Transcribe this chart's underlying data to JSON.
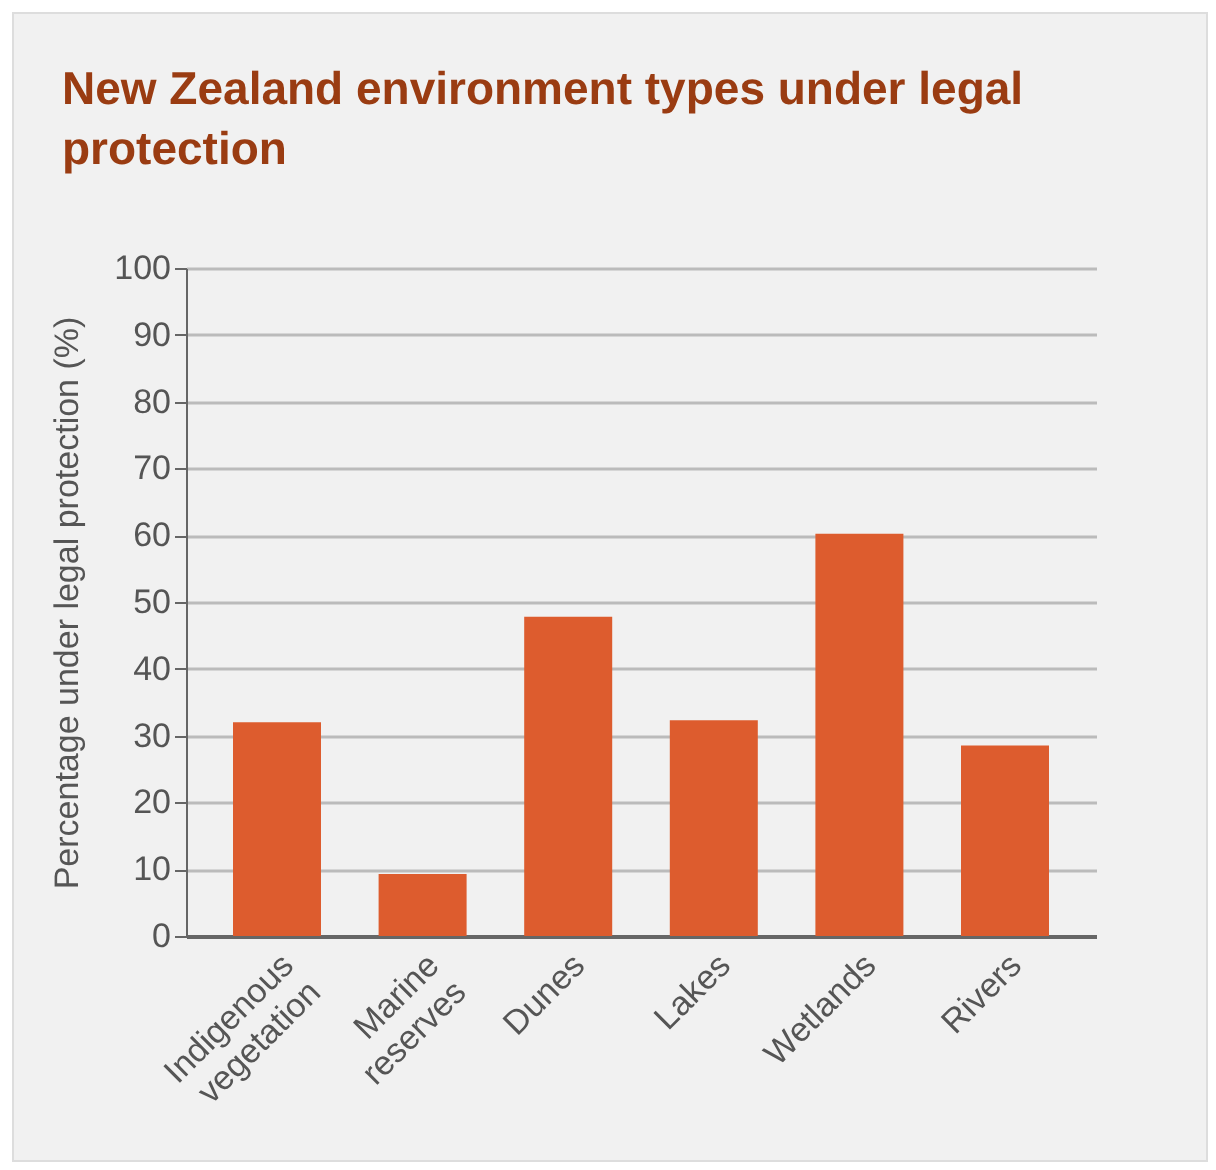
{
  "chart_data": {
    "type": "bar",
    "title": "New Zealand environment types under legal protection",
    "ylabel": "Percentage under legal protection (%)",
    "categories": [
      "Indigenous vegetation",
      "Marine reserves",
      "Dunes",
      "Lakes",
      "Wetlands",
      "Rivers"
    ],
    "values": [
      32,
      9.3,
      47.8,
      32.3,
      60.2,
      28.5
    ],
    "color": "#dd5c2e",
    "ylim": [
      0,
      100
    ],
    "yticks": [
      0,
      10,
      20,
      30,
      40,
      50,
      60,
      70,
      80,
      90,
      100
    ],
    "grid": "y"
  }
}
